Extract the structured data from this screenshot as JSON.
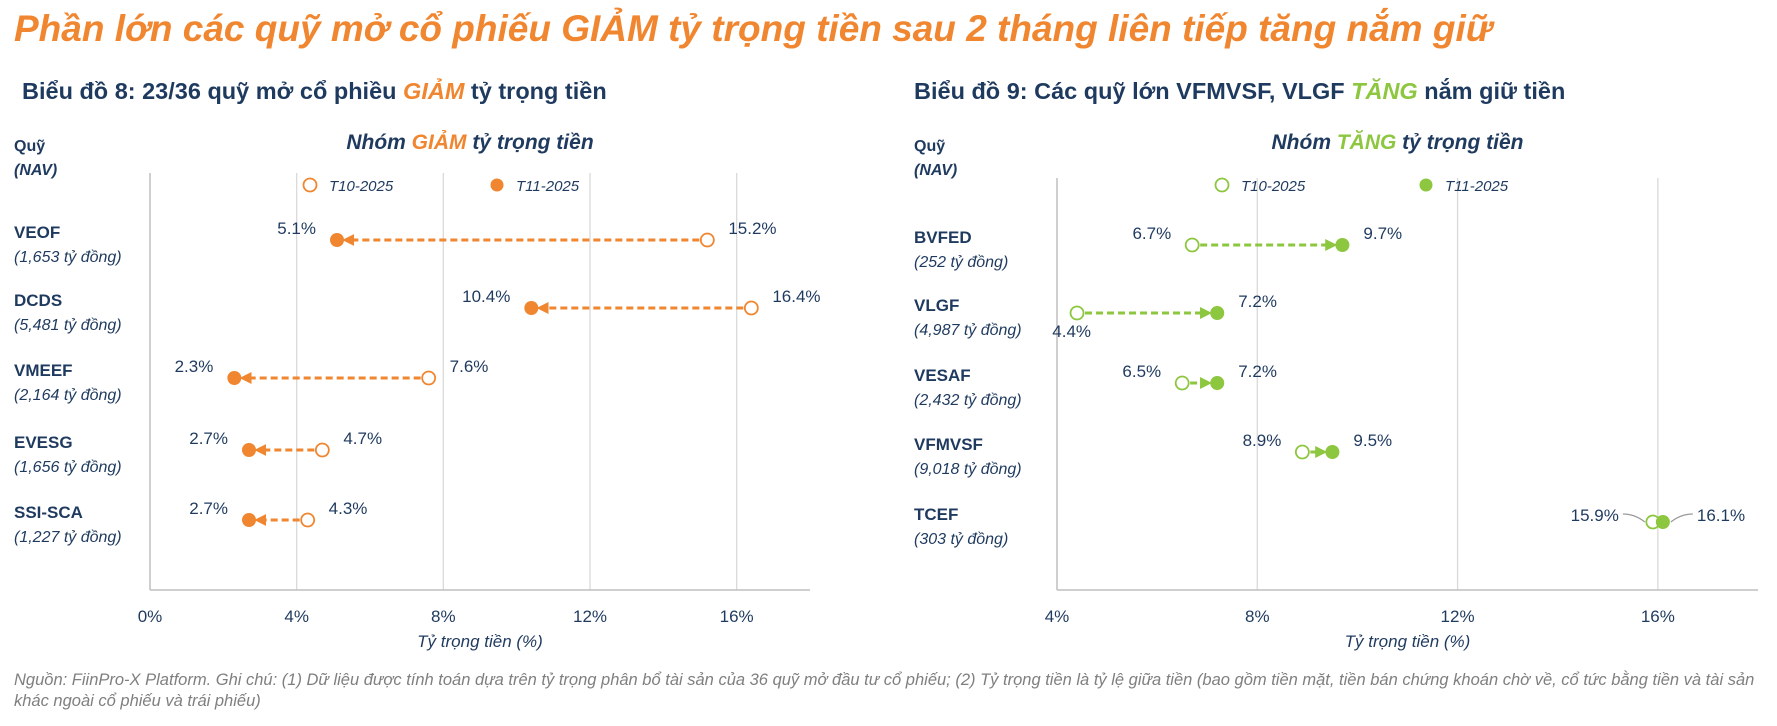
{
  "main_title": "Phần lớn các quỹ mở cổ phiếu GIẢM tỷ trọng tiền sau 2 tháng liên tiếp tăng nắm giữ",
  "footnote": "Nguồn: FiinPro-X Platform. Ghi chú: (1) Dữ liệu được tính toán dựa trên tỷ trọng phân bổ tài sản của 36 quỹ mở đầu tư cổ phiếu; (2) Tỷ trọng tiền là tỷ lệ giữa tiền (bao gồm tiền mặt, tiền bán chứng khoán chờ về, cổ tức bằng tiền và tài sản khác ngoài cổ phiếu và trái phiếu)",
  "colors": {
    "orange": "#F0862F",
    "green": "#8DC63F",
    "navy": "#1F3A5F",
    "grid": "#d9d9d9",
    "axis": "#bfbfbf"
  },
  "chart_data": [
    {
      "type": "dumbbell",
      "title": {
        "pre": "Biểu đồ 8: 23/36 quỹ mở cổ phiều ",
        "hl": "GIẢM",
        "post": " tỷ trọng tiền"
      },
      "subtitle": {
        "pre": "Nhóm ",
        "hl": "GIẢM",
        "post": " tỷ trọng tiền"
      },
      "y_header": [
        "Quỹ",
        "(NAV)"
      ],
      "xlabel": "Tỷ trọng tiền (%)",
      "xlim": [
        0,
        18
      ],
      "xticks": [
        0,
        4,
        8,
        12,
        16
      ],
      "tick_labels": [
        "0%",
        "4%",
        "8%",
        "12%",
        "16%"
      ],
      "grid": true,
      "legend": [
        "T10-2025",
        "T11-2025"
      ],
      "accent": "orange",
      "funds": [
        {
          "name": "VEOF",
          "nav": "(1,653 tỷ đồng)",
          "oct": 15.2,
          "nov": 5.1,
          "oct_label": "15.2%",
          "nov_label": "5.1%"
        },
        {
          "name": "DCDS",
          "nav": "(5,481 tỷ đồng)",
          "oct": 16.4,
          "nov": 10.4,
          "oct_label": "16.4%",
          "nov_label": "10.4%"
        },
        {
          "name": "VMEEF",
          "nav": "(2,164 tỷ đồng)",
          "oct": 7.6,
          "nov": 2.3,
          "oct_label": "7.6%",
          "nov_label": "2.3%"
        },
        {
          "name": "EVESG",
          "nav": "(1,656 tỷ đồng)",
          "oct": 4.7,
          "nov": 2.7,
          "oct_label": "4.7%",
          "nov_label": "2.7%"
        },
        {
          "name": "SSI-SCA",
          "nav": "(1,227 tỷ đồng)",
          "oct": 4.3,
          "nov": 2.7,
          "oct_label": "4.3%",
          "nov_label": "2.7%"
        }
      ]
    },
    {
      "type": "dumbbell",
      "title": {
        "pre": "Biểu đồ 9: Các quỹ lớn VFMVSF, VLGF ",
        "hl": "TĂNG",
        "post": " nắm giữ tiền"
      },
      "subtitle": {
        "pre": "Nhóm ",
        "hl": "TĂNG",
        "post": " tỷ trọng tiền"
      },
      "y_header": [
        "Quỹ",
        "(NAV)"
      ],
      "xlabel": "Tỷ trọng tiền (%)",
      "xlim": [
        4,
        18
      ],
      "xticks": [
        4,
        8,
        12,
        16
      ],
      "tick_labels": [
        "4%",
        "8%",
        "12%",
        "16%"
      ],
      "grid": true,
      "legend": [
        "T10-2025",
        "T11-2025"
      ],
      "accent": "green",
      "funds": [
        {
          "name": "BVFED",
          "nav": "(252 tỷ đồng)",
          "oct": 6.7,
          "nov": 9.7,
          "oct_label": "6.7%",
          "nov_label": "9.7%"
        },
        {
          "name": "VLGF",
          "nav": "(4,987 tỷ đồng)",
          "oct": 4.4,
          "nov": 7.2,
          "oct_label": "4.4%",
          "nov_label": "7.2%"
        },
        {
          "name": "VESAF",
          "nav": "(2,432 tỷ đồng)",
          "oct": 6.5,
          "nov": 7.2,
          "oct_label": "6.5%",
          "nov_label": "7.2%"
        },
        {
          "name": "VFMVSF",
          "nav": "(9,018 tỷ đồng)",
          "oct": 8.9,
          "nov": 9.5,
          "oct_label": "8.9%",
          "nov_label": "9.5%"
        },
        {
          "name": "TCEF",
          "nav": "(303 tỷ đồng)",
          "oct": 15.9,
          "nov": 16.1,
          "oct_label": "15.9%",
          "nov_label": "16.1%"
        }
      ]
    }
  ]
}
